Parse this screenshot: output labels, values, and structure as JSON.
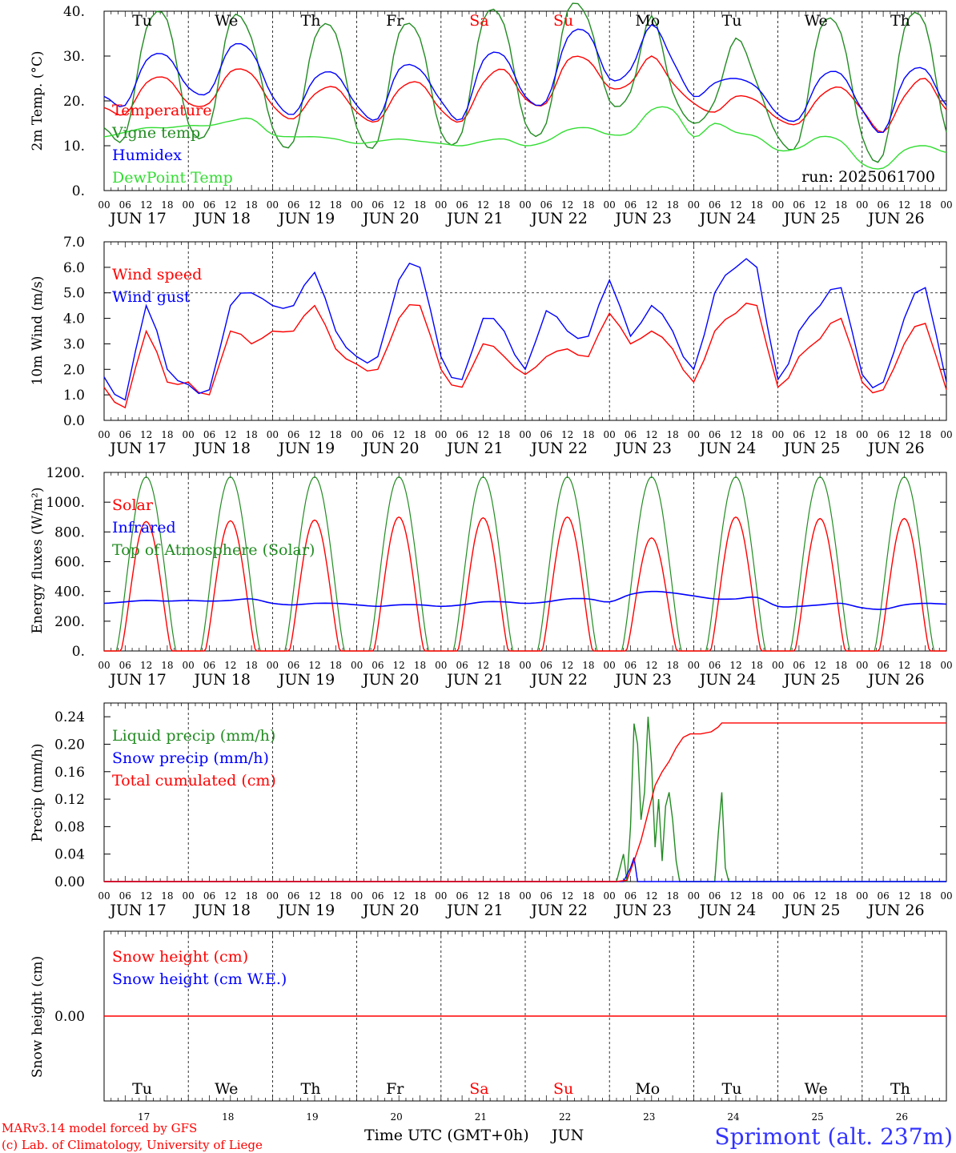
{
  "colors": {
    "red": "#ff0000",
    "dark_green": "#228b22",
    "blue": "#0000ff",
    "light_green": "#33dd33",
    "axis": "#000000",
    "site_blue": "#3333ff"
  },
  "days": {
    "names": [
      "Tu",
      "We",
      "Th",
      "Fr",
      "Sa",
      "Su",
      "Mo",
      "Tu",
      "We",
      "Th"
    ],
    "weekend": [
      false,
      false,
      false,
      false,
      true,
      true,
      false,
      false,
      false,
      false
    ],
    "dates": [
      "JUN 17",
      "JUN 18",
      "JUN 19",
      "JUN 20",
      "JUN 21",
      "JUN 22",
      "JUN 23",
      "JUN 24",
      "JUN 25",
      "JUN 26"
    ],
    "numbers": [
      "17",
      "18",
      "19",
      "20",
      "21",
      "22",
      "23",
      "24",
      "25",
      "26"
    ],
    "hours": [
      "00",
      "06",
      "12",
      "18"
    ],
    "final_hour": "00"
  },
  "footer": {
    "model": "MARv3.14 model forced by GFS",
    "credit": "(c) Lab. of Climatology, University of Liege",
    "time_label": "Time UTC (GMT+0h)",
    "month": "JUN",
    "site": "Sprimont (alt. 237m)"
  },
  "chart_data": [
    {
      "type": "line",
      "ylabel": "2m Temp. (°C)",
      "ylim": [
        0,
        40
      ],
      "ytick_labels": [
        "0.",
        "10.",
        "20.",
        "30.",
        "40."
      ],
      "run_label": "run: 2025061700",
      "x_hours": [
        0,
        6,
        12,
        18,
        24,
        30,
        36,
        42,
        48,
        54,
        60,
        66,
        72,
        78,
        84,
        90,
        96,
        102,
        108,
        114,
        120,
        126,
        132,
        138,
        144,
        150,
        156,
        162,
        168,
        174,
        180,
        186,
        192,
        198,
        204,
        210,
        216,
        222,
        228,
        234,
        240
      ],
      "series": [
        {
          "name": "Temperature",
          "color": "#ff0000",
          "values": [
            18.5,
            17,
            24,
            25,
            19.5,
            19.5,
            26.5,
            26,
            19,
            16,
            21.5,
            23,
            17.5,
            15.5,
            22.5,
            24,
            18,
            15.5,
            24,
            27,
            20.5,
            19.5,
            29,
            29,
            23,
            24,
            30,
            24,
            19.5,
            17.5,
            21,
            20,
            16,
            15,
            21,
            23,
            18,
            13,
            21,
            25,
            18
          ]
        },
        {
          "name": "Vigne temp",
          "color": "#228b22",
          "values": [
            14,
            12,
            36,
            38,
            15,
            14,
            38,
            34,
            14,
            11,
            34,
            35,
            14,
            11,
            35,
            34,
            13,
            13,
            38,
            37,
            15,
            15,
            40,
            38,
            20,
            22,
            39,
            22,
            15,
            20,
            34,
            24,
            12,
            11,
            36,
            35,
            12,
            8,
            36,
            37,
            13
          ]
        },
        {
          "name": "Humidex",
          "color": "#0000ff",
          "values": [
            21,
            19,
            29,
            30,
            23,
            22,
            32,
            31,
            21,
            17,
            25,
            26,
            19,
            16,
            27,
            27,
            20,
            16,
            29,
            30,
            21,
            20,
            34,
            35,
            25,
            27,
            37,
            29,
            21,
            24,
            25,
            23,
            17,
            16,
            25,
            26,
            18,
            13,
            25,
            27,
            19
          ]
        },
        {
          "name": "DewPoint Temp",
          "color": "#33dd33",
          "values": [
            12,
            13,
            14,
            14,
            14.5,
            14.5,
            15.5,
            16,
            12.5,
            12,
            12,
            11.5,
            10.5,
            11,
            11.5,
            11,
            10.5,
            10,
            11,
            11.5,
            10,
            11,
            13.5,
            14,
            12.5,
            13,
            18,
            18,
            12,
            15,
            13,
            12,
            9,
            9.5,
            12,
            11,
            6,
            5,
            9,
            10,
            8.5
          ]
        }
      ]
    },
    {
      "type": "line",
      "ylabel": "10m Wind (m/s)",
      "ylim": [
        0,
        7
      ],
      "ytick_labels": [
        "0.0",
        "1.0",
        "2.0",
        "3.0",
        "4.0",
        "5.0",
        "6.0",
        "7.0"
      ],
      "reference_line": 5,
      "x_hours": [
        0,
        6,
        12,
        18,
        24,
        30,
        36,
        42,
        48,
        54,
        60,
        66,
        72,
        78,
        84,
        90,
        96,
        102,
        108,
        114,
        120,
        126,
        132,
        138,
        144,
        150,
        156,
        162,
        168,
        174,
        180,
        186,
        192,
        198,
        204,
        210,
        216,
        222,
        228,
        234,
        240
      ],
      "series": [
        {
          "name": "Wind speed",
          "color": "#ff0000",
          "values": [
            1.3,
            0.5,
            3.5,
            1.5,
            1.5,
            1,
            3.5,
            3,
            3.5,
            3.5,
            4.5,
            2.8,
            2.2,
            2,
            4,
            4.5,
            2,
            1.3,
            3,
            2.5,
            1.8,
            2.5,
            2.8,
            2.5,
            4.2,
            3,
            3.5,
            2.8,
            1.5,
            3.5,
            4.2,
            4.5,
            1.3,
            2.5,
            3.2,
            4,
            1.5,
            1.2,
            3,
            3.8,
            1.2
          ]
        },
        {
          "name": "Wind gust",
          "color": "#0000ff",
          "values": [
            1.7,
            0.8,
            4.5,
            2,
            1.4,
            1.2,
            4.5,
            5,
            4.5,
            4.5,
            5.8,
            3.5,
            2.5,
            2.5,
            5.5,
            6,
            2.5,
            1.6,
            4,
            3.5,
            2,
            4.3,
            3.5,
            3.3,
            5.5,
            3.3,
            4.5,
            3.5,
            2,
            5,
            6,
            6,
            1.6,
            3.5,
            4.5,
            5.2,
            1.8,
            1.5,
            4,
            5.2,
            1.5
          ]
        }
      ]
    },
    {
      "type": "line",
      "ylabel": "Energy fluxes (W/m²)",
      "ylim": [
        0,
        1200
      ],
      "ytick_labels": [
        "0.",
        "200.",
        "400.",
        "600.",
        "800.",
        "1000.",
        "1200."
      ],
      "x_hours": [
        0,
        6,
        12,
        18,
        24,
        30,
        36,
        42,
        48,
        54,
        60,
        66,
        72,
        78,
        84,
        90,
        96,
        102,
        108,
        114,
        120,
        126,
        132,
        138,
        144,
        150,
        156,
        162,
        168,
        174,
        180,
        186,
        192,
        198,
        204,
        210,
        216,
        222,
        228,
        234,
        240
      ],
      "series": [
        {
          "name": "Solar",
          "color": "#ff0000",
          "daily_peaks": [
            870,
            875,
            880,
            900,
            895,
            900,
            760,
            900,
            890,
            890
          ],
          "values": [
            0,
            300,
            870,
            300,
            0,
            300,
            875,
            300,
            0,
            300,
            880,
            300,
            0,
            300,
            900,
            300,
            0,
            300,
            895,
            300,
            0,
            300,
            900,
            300,
            0,
            150,
            760,
            100,
            0,
            450,
            900,
            250,
            0,
            300,
            890,
            300,
            0,
            300,
            890,
            300,
            0
          ]
        },
        {
          "name": "Infrared",
          "color": "#0000ff",
          "values": [
            320,
            330,
            340,
            335,
            340,
            335,
            340,
            350,
            320,
            310,
            320,
            320,
            310,
            300,
            310,
            310,
            300,
            310,
            330,
            330,
            320,
            330,
            350,
            350,
            330,
            380,
            400,
            390,
            370,
            350,
            350,
            360,
            300,
            300,
            310,
            320,
            290,
            280,
            310,
            320,
            315
          ]
        },
        {
          "name": "Top of Atmosphere (Solar)",
          "color": "#228b22",
          "daily_peak": 1170,
          "values": [
            0,
            600,
            1170,
            600,
            0,
            600,
            1170,
            600,
            0,
            600,
            1170,
            600,
            0,
            600,
            1170,
            600,
            0,
            600,
            1170,
            600,
            0,
            600,
            1170,
            600,
            0,
            600,
            1170,
            600,
            0,
            600,
            1170,
            600,
            0,
            600,
            1170,
            600,
            0,
            600,
            1170,
            600,
            0
          ]
        }
      ]
    },
    {
      "type": "line",
      "ylabel": "Precip (mm/h)",
      "ylim": [
        0,
        0.26
      ],
      "ytick_labels": [
        "0.00",
        "0.04",
        "0.08",
        "0.12",
        "0.16",
        "0.20",
        "0.24"
      ],
      "series": [
        {
          "name": "Liquid precip (mm/h)",
          "color": "#228b22",
          "x_hours": [
            0,
            146,
            147,
            148,
            149,
            150,
            151,
            152,
            153,
            154,
            155,
            156,
            157,
            158,
            159,
            160,
            161,
            162,
            163,
            164,
            165,
            166,
            167,
            168,
            174,
            175,
            176,
            177,
            178,
            240
          ],
          "values": [
            0,
            0,
            0.02,
            0.04,
            0,
            0.08,
            0.23,
            0.2,
            0.09,
            0.13,
            0.24,
            0.17,
            0.05,
            0.12,
            0.03,
            0.11,
            0.13,
            0.09,
            0.03,
            0,
            0,
            0,
            0,
            0,
            0,
            0.07,
            0.13,
            0.02,
            0,
            0
          ]
        },
        {
          "name": "Snow precip (mm/h)",
          "color": "#0000ff",
          "x_hours": [
            0,
            148,
            149,
            150,
            151,
            152,
            240
          ],
          "values": [
            0,
            0,
            0.01,
            0.02,
            0.035,
            0,
            0
          ]
        },
        {
          "name": "Total cumulated (cm)",
          "color": "#ff0000",
          "x_hours": [
            0,
            146,
            149,
            151,
            153,
            155,
            157,
            159,
            161,
            163,
            165,
            167,
            170,
            173,
            175,
            176,
            240
          ],
          "values": [
            0,
            0,
            0.002,
            0.03,
            0.06,
            0.1,
            0.14,
            0.16,
            0.175,
            0.195,
            0.21,
            0.215,
            0.215,
            0.218,
            0.225,
            0.231,
            0.231
          ]
        }
      ]
    },
    {
      "type": "line",
      "ylabel": "Snow height (cm)",
      "ylim": [
        -0.1,
        0.1
      ],
      "ytick_labels": [
        "0.00"
      ],
      "series": [
        {
          "name": "Snow height (cm)",
          "color": "#ff0000",
          "x_hours": [
            0,
            240
          ],
          "values": [
            0,
            0
          ]
        },
        {
          "name": "Snow height (cm W.E.)",
          "color": "#0000ff",
          "x_hours": [
            0,
            240
          ],
          "values": [
            0,
            0
          ]
        }
      ]
    }
  ]
}
